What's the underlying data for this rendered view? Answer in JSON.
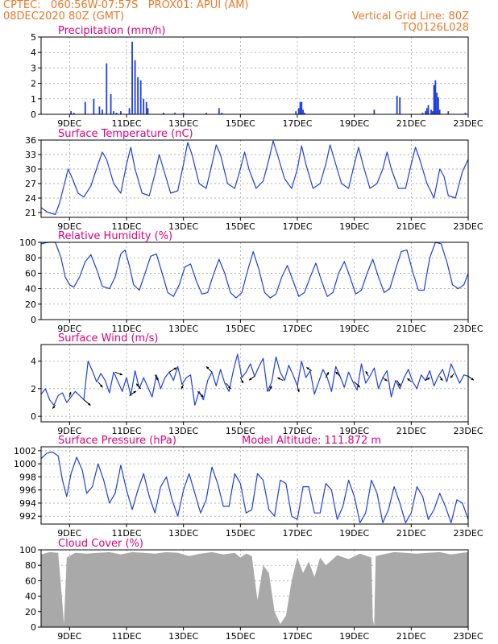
{
  "header": {
    "line1": "CPTEC:   060:56W-07:57S   PROX01: APUI (AM)",
    "line2": "08DEC2020 80Z (GMT)",
    "right1": "Vertical Grid Line: 80Z",
    "right2": "TQ0126L028"
  },
  "colors": {
    "header": "#e8792b",
    "title": "#e0007a",
    "series": "#1f3fe0",
    "cloud": "#a9a9a9",
    "grid": "#9a9a9a"
  },
  "x_axis": {
    "range_days": [
      0,
      15
    ],
    "ticks": [
      {
        "day": 1,
        "label": "9DEC"
      },
      {
        "day": 3,
        "label": "11DEC"
      },
      {
        "day": 5,
        "label": "13DEC"
      },
      {
        "day": 7,
        "label": "15DEC"
      },
      {
        "day": 9,
        "label": "17DEC"
      },
      {
        "day": 11,
        "label": "19DEC"
      },
      {
        "day": 13,
        "label": "21DEC"
      },
      {
        "day": 15,
        "label": "23DEC"
      }
    ]
  },
  "chart_data": [
    {
      "id": "precip",
      "type": "bar",
      "title": "Precipitation (mm/h)",
      "ylim": [
        0,
        5
      ],
      "yticks": [
        0,
        1,
        2,
        3,
        4,
        5
      ],
      "grid": true,
      "x": [
        1.05,
        1.15,
        1.55,
        1.85,
        2.05,
        2.15,
        2.3,
        2.45,
        2.55,
        2.65,
        2.8,
        3.1,
        3.2,
        3.3,
        3.4,
        3.5,
        3.6,
        3.7,
        3.75,
        4.3,
        4.7,
        5.0,
        5.8,
        6.25,
        6.35,
        8.95,
        9.05,
        9.1,
        9.15,
        9.2,
        9.25,
        11.7,
        12.5,
        12.6,
        13.4,
        13.5,
        13.55,
        13.6,
        13.7,
        13.75,
        13.8,
        13.85,
        13.9,
        13.95,
        14.0,
        14.3,
        14.9
      ],
      "y": [
        0.2,
        0.1,
        0.8,
        1.0,
        0.5,
        0.3,
        3.3,
        1.3,
        0.2,
        0.1,
        0.2,
        0.4,
        4.7,
        3.5,
        2.4,
        2.2,
        1.0,
        0.8,
        0.4,
        0.1,
        0.1,
        0.1,
        0.1,
        0.4,
        0.1,
        0.2,
        0.4,
        0.8,
        0.8,
        0.3,
        0.1,
        0.3,
        1.2,
        1.1,
        0.1,
        0.2,
        0.4,
        0.6,
        0.3,
        0.2,
        1.9,
        2.2,
        1.4,
        1.1,
        0.3,
        0.2,
        0.1
      ]
    },
    {
      "id": "temp",
      "type": "line",
      "title": "Surface Temperature (nC)",
      "ylim": [
        20,
        36
      ],
      "yticks": [
        21,
        24,
        27,
        30,
        33,
        36
      ],
      "grid": true,
      "x": [
        0,
        0.25,
        0.5,
        0.65,
        0.8,
        0.95,
        1.1,
        1.3,
        1.5,
        1.75,
        2.0,
        2.15,
        2.3,
        2.55,
        2.8,
        3.0,
        3.15,
        3.3,
        3.55,
        3.8,
        4.0,
        4.15,
        4.3,
        4.55,
        4.8,
        5.0,
        5.15,
        5.3,
        5.55,
        5.8,
        6.0,
        6.15,
        6.3,
        6.55,
        6.8,
        7.0,
        7.15,
        7.3,
        7.55,
        7.8,
        8.0,
        8.15,
        8.3,
        8.55,
        8.8,
        9.0,
        9.15,
        9.3,
        9.55,
        9.8,
        10.0,
        10.15,
        10.3,
        10.55,
        10.8,
        11.0,
        11.15,
        11.3,
        11.55,
        11.8,
        12.0,
        12.15,
        12.3,
        12.55,
        12.8,
        13.0,
        13.15,
        13.3,
        13.55,
        13.8,
        14.0,
        14.15,
        14.3,
        14.55,
        14.8,
        15.0
      ],
      "y": [
        22,
        21,
        20.6,
        23,
        26.5,
        30,
        28,
        25,
        24.2,
        26.5,
        31,
        33.5,
        32,
        27,
        25,
        31,
        34.5,
        30,
        25,
        24.5,
        29,
        33,
        30,
        25,
        25.5,
        31,
        35.5,
        33,
        27,
        26,
        31,
        35,
        33,
        27,
        26,
        30,
        33.5,
        30,
        26,
        27.5,
        32,
        35.8,
        33,
        28,
        26,
        30,
        34.8,
        31,
        26,
        27,
        31,
        35,
        32,
        27,
        26,
        31,
        34.5,
        31,
        26,
        27,
        30,
        33.5,
        30,
        26,
        26,
        31,
        34.5,
        32,
        27,
        24,
        30,
        28.5,
        24.5,
        24,
        29.5,
        32
      ]
    },
    {
      "id": "rh",
      "type": "line",
      "title": "Relative Humidity (%)",
      "ylim": [
        0,
        100
      ],
      "yticks": [
        0,
        20,
        40,
        60,
        80,
        100
      ],
      "grid": true,
      "x": [
        0,
        0.25,
        0.5,
        0.7,
        0.85,
        1.0,
        1.15,
        1.35,
        1.55,
        1.75,
        1.95,
        2.15,
        2.4,
        2.6,
        2.8,
        2.95,
        3.1,
        3.25,
        3.45,
        3.65,
        3.85,
        4.05,
        4.25,
        4.45,
        4.65,
        4.85,
        5.05,
        5.25,
        5.45,
        5.65,
        5.85,
        6.05,
        6.25,
        6.45,
        6.65,
        6.85,
        7.05,
        7.25,
        7.45,
        7.65,
        7.85,
        8.05,
        8.25,
        8.45,
        8.65,
        8.85,
        9.05,
        9.25,
        9.45,
        9.65,
        9.85,
        10.05,
        10.25,
        10.45,
        10.65,
        10.85,
        11.05,
        11.25,
        11.45,
        11.65,
        11.85,
        12.05,
        12.25,
        12.45,
        12.65,
        12.85,
        13.05,
        13.25,
        13.45,
        13.65,
        13.85,
        14.05,
        14.25,
        14.45,
        14.65,
        14.85,
        15.0
      ],
      "y": [
        98,
        100,
        100,
        80,
        55,
        45,
        42,
        55,
        75,
        84,
        65,
        43,
        40,
        55,
        85,
        90,
        70,
        45,
        38,
        60,
        82,
        85,
        60,
        35,
        30,
        45,
        68,
        72,
        50,
        33,
        35,
        58,
        78,
        60,
        35,
        28,
        35,
        63,
        88,
        65,
        35,
        28,
        33,
        55,
        70,
        50,
        30,
        35,
        55,
        73,
        50,
        30,
        35,
        60,
        75,
        55,
        33,
        38,
        60,
        78,
        55,
        35,
        40,
        65,
        88,
        90,
        62,
        38,
        38,
        80,
        100,
        98,
        75,
        45,
        40,
        45,
        60
      ]
    },
    {
      "id": "wind",
      "type": "line",
      "title": "Surface Wind (m/s)",
      "ylim": [
        -0.4,
        5.2
      ],
      "yticks": [
        0,
        2,
        4
      ],
      "grid": true,
      "x": [
        0,
        0.15,
        0.3,
        0.45,
        0.6,
        0.75,
        0.9,
        1.05,
        1.2,
        1.35,
        1.5,
        1.65,
        1.8,
        1.95,
        2.1,
        2.25,
        2.4,
        2.55,
        2.7,
        2.85,
        3.0,
        3.15,
        3.3,
        3.45,
        3.6,
        3.75,
        3.9,
        4.05,
        4.2,
        4.35,
        4.5,
        4.65,
        4.8,
        4.95,
        5.1,
        5.25,
        5.4,
        5.55,
        5.7,
        5.85,
        6.0,
        6.15,
        6.3,
        6.45,
        6.6,
        6.75,
        6.9,
        7.05,
        7.2,
        7.35,
        7.5,
        7.65,
        7.8,
        7.95,
        8.1,
        8.25,
        8.4,
        8.55,
        8.7,
        8.85,
        9.0,
        9.15,
        9.3,
        9.45,
        9.6,
        9.75,
        9.9,
        10.05,
        10.2,
        10.35,
        10.5,
        10.65,
        10.8,
        10.95,
        11.1,
        11.25,
        11.4,
        11.55,
        11.7,
        11.85,
        12.0,
        12.15,
        12.3,
        12.45,
        12.6,
        12.75,
        12.9,
        13.05,
        13.2,
        13.35,
        13.5,
        13.65,
        13.8,
        13.95,
        14.1,
        14.25,
        14.4,
        14.55,
        14.7,
        14.85,
        15.0
      ],
      "y": [
        1.6,
        2.0,
        1.2,
        0.8,
        1.5,
        1.7,
        1.0,
        1.4,
        1.8,
        1.5,
        1.2,
        4.0,
        3.3,
        2.5,
        3.1,
        2.6,
        1.7,
        3.2,
        2.5,
        1.8,
        2.8,
        1.5,
        3.3,
        2.0,
        2.8,
        2.1,
        1.4,
        3.0,
        2.0,
        2.8,
        3.2,
        2.6,
        3.6,
        2.3,
        2.8,
        3.0,
        0.8,
        1.8,
        1.2,
        2.6,
        3.2,
        2.2,
        3.4,
        2.4,
        1.8,
        3.3,
        4.5,
        2.8,
        3.2,
        3.8,
        2.9,
        3.6,
        4.2,
        1.8,
        2.5,
        4.3,
        3.2,
        2.6,
        3.7,
        3.0,
        2.2,
        4.0,
        2.8,
        3.3,
        1.6,
        2.5,
        3.4,
        2.8,
        1.8,
        3.6,
        2.9,
        2.1,
        3.2,
        2.5,
        1.9,
        3.8,
        2.4,
        2.9,
        3.5,
        2.0,
        2.8,
        3.3,
        1.4,
        2.6,
        2.0,
        2.8,
        3.4,
        2.5,
        2.0,
        3.0,
        2.6,
        3.3,
        2.2,
        2.9,
        3.4,
        2.5,
        3.8,
        3.1,
        2.4,
        3.0,
        2.9
      ]
    },
    {
      "id": "pressure",
      "type": "line",
      "title": "Surface Pressure (hPa)",
      "annotation": "Model Altitude: 111.872 m",
      "ylim": [
        990.8,
        1002.6
      ],
      "yticks": [
        992,
        994,
        996,
        998,
        1000,
        1002
      ],
      "grid": true,
      "x": [
        0,
        0.2,
        0.4,
        0.6,
        0.75,
        0.9,
        1.05,
        1.25,
        1.45,
        1.6,
        1.8,
        2.0,
        2.2,
        2.4,
        2.6,
        2.8,
        3.0,
        3.2,
        3.4,
        3.6,
        3.8,
        4.0,
        4.2,
        4.4,
        4.6,
        4.8,
        5.0,
        5.2,
        5.4,
        5.6,
        5.8,
        6.0,
        6.2,
        6.4,
        6.6,
        6.8,
        7.0,
        7.2,
        7.4,
        7.6,
        7.8,
        8.0,
        8.2,
        8.4,
        8.6,
        8.8,
        9.0,
        9.2,
        9.4,
        9.6,
        9.8,
        10.0,
        10.2,
        10.4,
        10.6,
        10.8,
        11.0,
        11.2,
        11.4,
        11.6,
        11.8,
        12.0,
        12.2,
        12.4,
        12.6,
        12.8,
        13.0,
        13.2,
        13.4,
        13.6,
        13.8,
        14.0,
        14.2,
        14.4,
        14.6,
        14.8,
        15.0
      ],
      "y": [
        1000.8,
        1001.6,
        1001.8,
        1001.2,
        997.5,
        995.0,
        998.5,
        1001.0,
        999.0,
        995.5,
        996.5,
        1000.0,
        997.5,
        994.0,
        995.5,
        999.8,
        996.0,
        993.0,
        996.0,
        998.5,
        995.0,
        992.5,
        996.5,
        998.0,
        994.5,
        992.0,
        996.0,
        998.5,
        995.5,
        992.5,
        994.5,
        999.5,
        997.0,
        993.5,
        993.5,
        998.5,
        997.0,
        992.5,
        993.0,
        998.5,
        997.5,
        993.0,
        992.0,
        997.5,
        997.0,
        992.0,
        991.5,
        996.5,
        996.5,
        992.5,
        992.5,
        997.0,
        996.0,
        991.5,
        993.5,
        997.5,
        995.0,
        991.0,
        992.5,
        997.5,
        995.5,
        991.0,
        993.0,
        996.5,
        994.0,
        991.0,
        992.5,
        996.5,
        995.0,
        991.5,
        993.0,
        995.5,
        993.5,
        991.0,
        994.5,
        994.0,
        991.5
      ]
    },
    {
      "id": "cloud",
      "type": "area",
      "title": "Cloud Cover (%)",
      "ylim": [
        0,
        100
      ],
      "yticks": [
        0,
        20,
        40,
        60,
        80,
        100
      ],
      "grid": true,
      "x": [
        0,
        0.3,
        0.6,
        0.75,
        0.8,
        0.9,
        1.2,
        1.6,
        2.0,
        2.4,
        2.8,
        3.2,
        3.6,
        4.0,
        4.4,
        4.8,
        5.2,
        5.6,
        6.0,
        6.4,
        6.8,
        7.0,
        7.2,
        7.4,
        7.6,
        7.8,
        8.0,
        8.2,
        8.4,
        8.6,
        8.8,
        9.0,
        9.2,
        9.4,
        9.6,
        9.8,
        10.0,
        10.4,
        10.8,
        11.2,
        11.6,
        11.65,
        11.7,
        11.75,
        12.0,
        12.4,
        12.8,
        13.2,
        13.6,
        14.0,
        14.4,
        14.8,
        15.0
      ],
      "y": [
        94,
        97,
        96,
        30,
        4,
        90,
        96,
        95,
        96,
        97,
        94,
        97,
        96,
        95,
        97,
        96,
        92,
        95,
        97,
        94,
        96,
        90,
        95,
        92,
        35,
        80,
        70,
        20,
        4,
        15,
        60,
        90,
        70,
        85,
        65,
        90,
        80,
        93,
        88,
        95,
        90,
        10,
        2,
        92,
        94,
        97,
        96,
        95,
        96,
        97,
        94,
        96,
        97
      ]
    }
  ],
  "wind_vectors": {
    "note": "direction arrows (dx, dy in m/s)",
    "x": [
      0.5,
      1.0,
      1.5,
      2.0,
      2.6,
      3.1,
      3.5,
      4.0,
      4.5,
      5.0,
      5.5,
      6.0,
      6.5,
      7.0,
      7.5,
      8.0,
      8.5,
      9.0,
      9.5,
      10.0,
      10.5,
      11.0,
      11.5,
      12.0,
      12.5,
      13.0,
      13.5,
      14.0,
      14.5,
      15.0
    ],
    "u": [
      -0.5,
      0.2,
      1.2,
      0.8,
      1.3,
      1.2,
      -0.8,
      0.6,
      1.3,
      -0.4,
      1.0,
      -1.0,
      0.8,
      0.5,
      -1.0,
      0.5,
      -1.0,
      0.3,
      -0.9,
      0.5,
      -0.8,
      1.0,
      -0.5,
      0.8,
      0.6,
      -0.7,
      0.8,
      0.5,
      -0.6,
      1.0
    ],
    "v": [
      -0.6,
      0.9,
      -1.0,
      -1.0,
      -0.5,
      0.8,
      0.9,
      -1.0,
      0.8,
      -0.8,
      -1.0,
      1.0,
      -1.0,
      -1.0,
      -0.7,
      1.0,
      0.5,
      -1.1,
      0.6,
      1.0,
      0.8,
      -1.0,
      0.9,
      -0.6,
      -1.0,
      0.6,
      0.5,
      -0.8,
      -0.8,
      -0.7
    ]
  }
}
